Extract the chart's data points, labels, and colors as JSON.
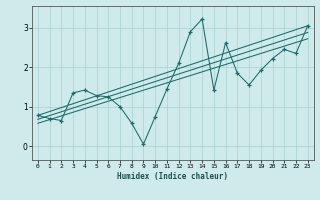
{
  "xlabel": "Humidex (Indice chaleur)",
  "bg_color": "#ceeaea",
  "line_color": "#1a6b6b",
  "grid_color": "#aad0d0",
  "xlim": [
    -0.5,
    23.5
  ],
  "ylim": [
    -0.35,
    3.55
  ],
  "xticks": [
    0,
    1,
    2,
    3,
    4,
    5,
    6,
    7,
    8,
    9,
    10,
    11,
    12,
    13,
    14,
    15,
    16,
    17,
    18,
    19,
    20,
    21,
    22,
    23
  ],
  "yticks": [
    0,
    1,
    2,
    3
  ],
  "data_x": [
    0,
    1,
    2,
    3,
    4,
    5,
    6,
    7,
    8,
    9,
    10,
    11,
    12,
    13,
    14,
    15,
    16,
    17,
    18,
    19,
    20,
    21,
    22,
    23
  ],
  "data_y": [
    0.78,
    0.7,
    0.65,
    1.35,
    1.42,
    1.28,
    1.25,
    1.0,
    0.58,
    0.05,
    0.75,
    1.45,
    2.1,
    2.9,
    3.22,
    1.42,
    2.62,
    1.85,
    1.55,
    1.92,
    2.22,
    2.45,
    2.35,
    3.05
  ],
  "line1_x": [
    0,
    23
  ],
  "line1_y": [
    0.78,
    3.05
  ],
  "line2_x": [
    0,
    23
  ],
  "line2_y": [
    0.68,
    2.88
  ],
  "line3_x": [
    0,
    23
  ],
  "line3_y": [
    0.58,
    2.72
  ]
}
